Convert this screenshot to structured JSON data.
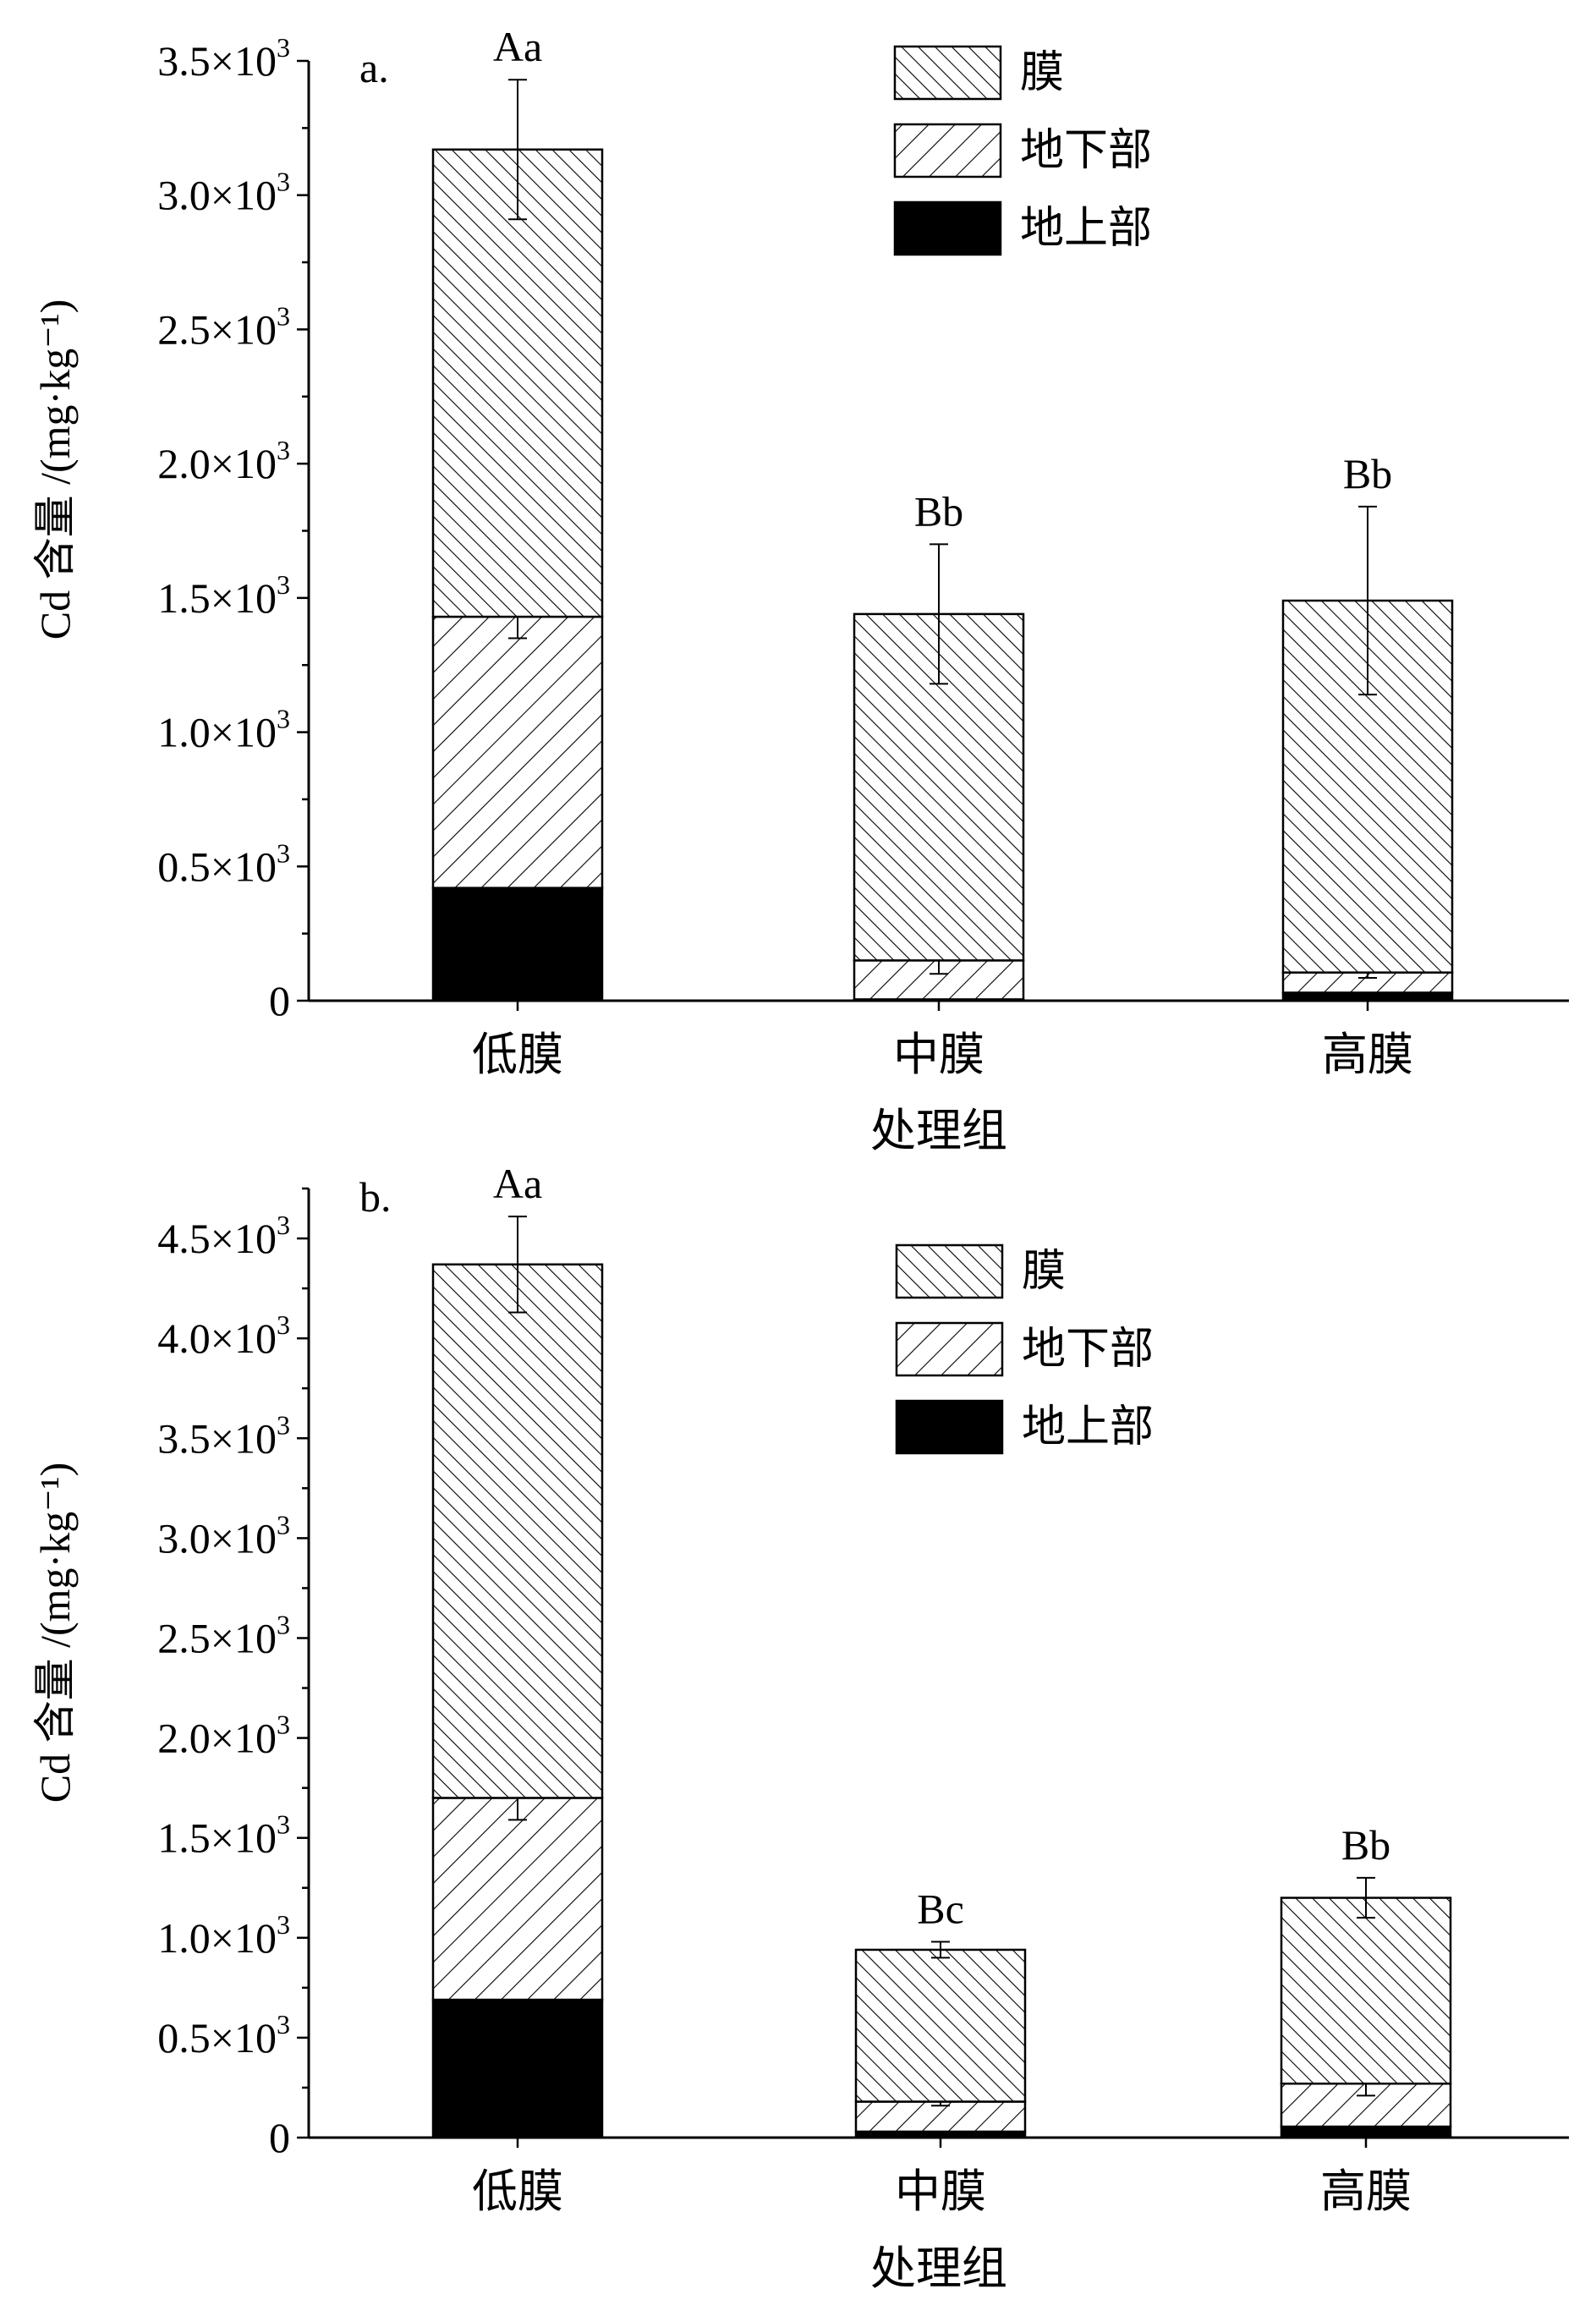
{
  "chart_data": [
    {
      "type": "bar",
      "stacked": true,
      "panel_label": "a.",
      "categories": [
        "低膜",
        "中膜",
        "高膜"
      ],
      "series": [
        {
          "name": "地上部",
          "values": [
            420,
            5,
            30
          ],
          "errors": [
            110,
            0,
            0
          ],
          "pattern": "solid"
        },
        {
          "name": "地下部",
          "values": [
            1010,
            145,
            75
          ],
          "errors": [
            80,
            50,
            20
          ],
          "pattern": "forward-hatch"
        },
        {
          "name": "膜",
          "values": [
            1740,
            1290,
            1385
          ],
          "errors": [
            260,
            260,
            350
          ],
          "pattern": "back-hatch"
        }
      ],
      "significance": [
        "Aa",
        "Bb",
        "Bb"
      ],
      "xlabel": "处理组",
      "ylabel": "Cd 含量 /(mg·kg⁻¹)",
      "ylim": [
        0,
        3500
      ],
      "yticks": [
        0,
        500,
        1000,
        1500,
        2000,
        2500,
        3000,
        3500
      ],
      "ytick_labels": [
        "0",
        "0.5×10³",
        "1.0×10³",
        "1.5×10³",
        "2.0×10³",
        "2.5×10³",
        "3.0×10³",
        "3.5×10³"
      ],
      "legend": [
        "膜",
        "地下部",
        "地上部"
      ],
      "legend_position": "top-right",
      "grid": false
    },
    {
      "type": "bar",
      "stacked": true,
      "panel_label": "b.",
      "categories": [
        "低膜",
        "中膜",
        "高膜"
      ],
      "series": [
        {
          "name": "地上部",
          "values": [
            690,
            30,
            55
          ],
          "errors": [
            50,
            0,
            0
          ],
          "pattern": "solid"
        },
        {
          "name": "地下部",
          "values": [
            1010,
            150,
            215
          ],
          "errors": [
            110,
            20,
            60
          ],
          "pattern": "forward-hatch"
        },
        {
          "name": "膜",
          "values": [
            2670,
            760,
            930
          ],
          "errors": [
            240,
            40,
            100
          ],
          "pattern": "back-hatch"
        }
      ],
      "significance": [
        "Aa",
        "Bc",
        "Bb"
      ],
      "xlabel": "处理组",
      "ylabel": "Cd 含量 /(mg·kg⁻¹)",
      "ylim": [
        0,
        4750
      ],
      "yticks": [
        0,
        500,
        1000,
        1500,
        2000,
        2500,
        3000,
        3500,
        4000,
        4500
      ],
      "ytick_labels": [
        "0",
        "0.5×10³",
        "1.0×10³",
        "1.5×10³",
        "2.0×10³",
        "2.5×10³",
        "3.0×10³",
        "3.5×10³",
        "4.0×10³",
        "4.5×10³"
      ],
      "legend": [
        "膜",
        "地下部",
        "地上部"
      ],
      "legend_position": "top-right",
      "grid": false
    }
  ]
}
